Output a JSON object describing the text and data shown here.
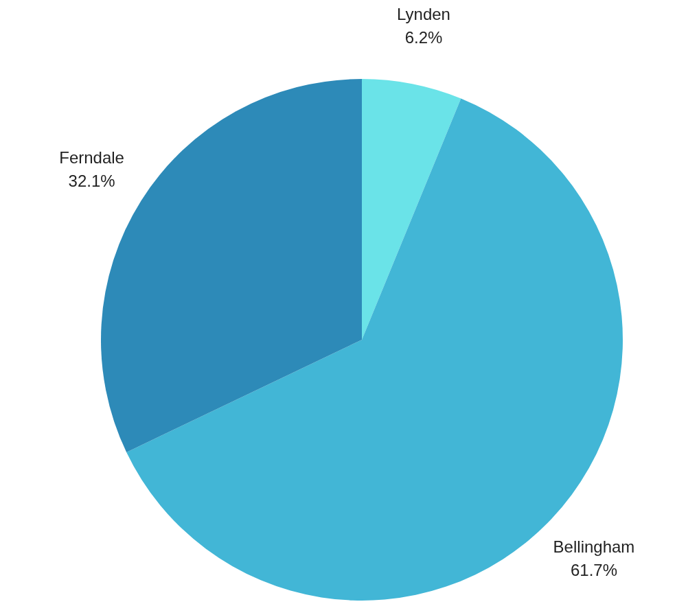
{
  "chart_data": {
    "type": "pie",
    "categories": [
      "Lynden",
      "Bellingham",
      "Ferndale"
    ],
    "values": [
      6.2,
      61.7,
      32.1
    ],
    "value_labels": [
      "6.2%",
      "61.7%",
      "32.1%"
    ],
    "colors": [
      "#6ae3e8",
      "#42b6d6",
      "#2d8ab8"
    ],
    "legend": false
  }
}
